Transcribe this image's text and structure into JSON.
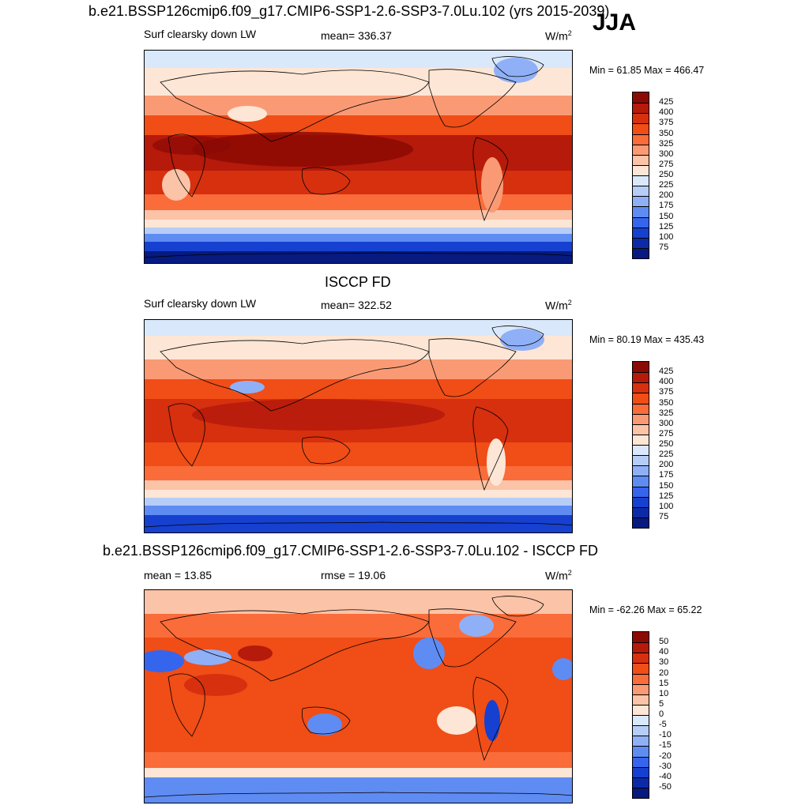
{
  "header": {
    "main_title": "b.e21.BSSP126cmip6.f09_g17.CMIP6-SSP1-2.6-SSP3-7.0Lu.102 (yrs 2015-2039)",
    "season": "JJA"
  },
  "panels": [
    {
      "id": "model",
      "section_title": "",
      "left_label": "Surf clearsky down LW",
      "center_label": "mean= 336.37",
      "units": "W/m",
      "units_sup": "2",
      "minmax": "Min =  61.85 Max = 466.47",
      "levels": [
        "425",
        "400",
        "375",
        "350",
        "325",
        "300",
        "275",
        "250",
        "225",
        "200",
        "175",
        "150",
        "125",
        "100",
        "75"
      ],
      "colors": [
        "#8c0a04",
        "#b51a0a",
        "#d6300f",
        "#f04d17",
        "#fa6c3a",
        "#fa9a74",
        "#fbc3a7",
        "#fde6d5",
        "#d9e8fb",
        "#b6cdf8",
        "#8fb0f6",
        "#5f8cf2",
        "#3565ec",
        "#1640cf",
        "#0c2aa8",
        "#061a80"
      ]
    },
    {
      "id": "obs",
      "section_title": "ISCCP FD",
      "left_label": "Surf clearsky down LW",
      "center_label": "mean= 322.52",
      "units": "W/m",
      "units_sup": "2",
      "minmax": "Min =  80.19 Max = 435.43",
      "levels": [
        "425",
        "400",
        "375",
        "350",
        "325",
        "300",
        "275",
        "250",
        "225",
        "200",
        "175",
        "150",
        "125",
        "100",
        "75"
      ],
      "colors": [
        "#8c0a04",
        "#b51a0a",
        "#d6300f",
        "#f04d17",
        "#fa6c3a",
        "#fa9a74",
        "#fbc3a7",
        "#fde6d5",
        "#d9e8fb",
        "#b6cdf8",
        "#8fb0f6",
        "#5f8cf2",
        "#3565ec",
        "#1640cf",
        "#0c2aa8",
        "#061a80"
      ]
    },
    {
      "id": "diff",
      "section_title": "b.e21.BSSP126cmip6.f09_g17.CMIP6-SSP1-2.6-SSP3-7.0Lu.102 - ISCCP FD",
      "left_label": "mean =  13.85",
      "center_label": "rmse =  19.06",
      "units": "W/m",
      "units_sup": "2",
      "minmax": "Min = -62.26 Max =  65.22",
      "levels": [
        "50",
        "40",
        "30",
        "20",
        "15",
        "10",
        "5",
        "0",
        "-5",
        "-10",
        "-15",
        "-20",
        "-30",
        "-40",
        "-50"
      ],
      "colors": [
        "#8c0a04",
        "#b51a0a",
        "#d6300f",
        "#f04d17",
        "#fa6c3a",
        "#fa9a74",
        "#fbc3a7",
        "#fde6d5",
        "#d9e8fb",
        "#b6cdf8",
        "#8fb0f6",
        "#5f8cf2",
        "#3565ec",
        "#1640cf",
        "#0c2aa8",
        "#061a80"
      ]
    }
  ]
}
